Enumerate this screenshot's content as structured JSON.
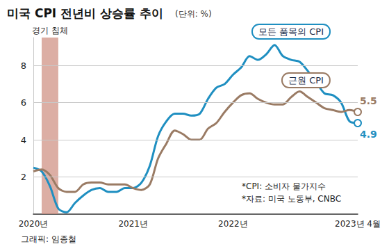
{
  "chart_data": {
    "type": "line",
    "title": "미국 CPI 전년비 상승률 추이",
    "unit": "(단위: %)",
    "categories": [
      "2020년",
      null,
      null,
      null,
      null,
      null,
      null,
      null,
      null,
      null,
      null,
      null,
      "2021년",
      null,
      null,
      null,
      null,
      null,
      null,
      null,
      null,
      null,
      null,
      null,
      "2022년",
      null,
      null,
      null,
      null,
      null,
      null,
      null,
      null,
      null,
      null,
      null,
      null,
      null,
      null,
      "2023년 4월"
    ],
    "series": [
      {
        "name": "모든 품목의 CPI",
        "color": "#1f8fc1",
        "end_label": "4.9",
        "values": [
          2.5,
          2.3,
          1.5,
          0.3,
          0.1,
          0.6,
          1.0,
          1.3,
          1.4,
          1.2,
          1.2,
          1.4,
          1.4,
          1.7,
          2.6,
          4.2,
          5.0,
          5.4,
          5.4,
          5.3,
          5.4,
          6.2,
          6.8,
          7.0,
          7.5,
          7.9,
          8.5,
          8.3,
          8.6,
          9.1,
          8.5,
          8.3,
          8.2,
          7.7,
          7.1,
          6.5,
          6.4,
          6.0,
          5.0,
          4.9
        ]
      },
      {
        "name": "근원 CPI",
        "color": "#9a7b64",
        "end_label": "5.5",
        "values": [
          2.3,
          2.4,
          2.1,
          1.4,
          1.2,
          1.2,
          1.6,
          1.7,
          1.7,
          1.6,
          1.6,
          1.6,
          1.4,
          1.3,
          1.6,
          3.0,
          3.8,
          4.5,
          4.3,
          4.0,
          4.0,
          4.6,
          4.9,
          5.5,
          6.0,
          6.4,
          6.5,
          6.2,
          6.0,
          5.9,
          5.9,
          6.3,
          6.6,
          6.3,
          6.0,
          5.7,
          5.6,
          5.5,
          5.6,
          5.5
        ]
      }
    ],
    "ylim": [
      0,
      9.5
    ],
    "yticks": [
      2,
      4,
      6,
      8
    ],
    "grid": true,
    "recession": {
      "label": "경기 침체",
      "start": 1,
      "end": 3
    },
    "notes": [
      "*CPI: 소비자 물가지수",
      "*자료: 미국 노동부, CNBC"
    ],
    "credit": "그래픽: 임종철"
  }
}
